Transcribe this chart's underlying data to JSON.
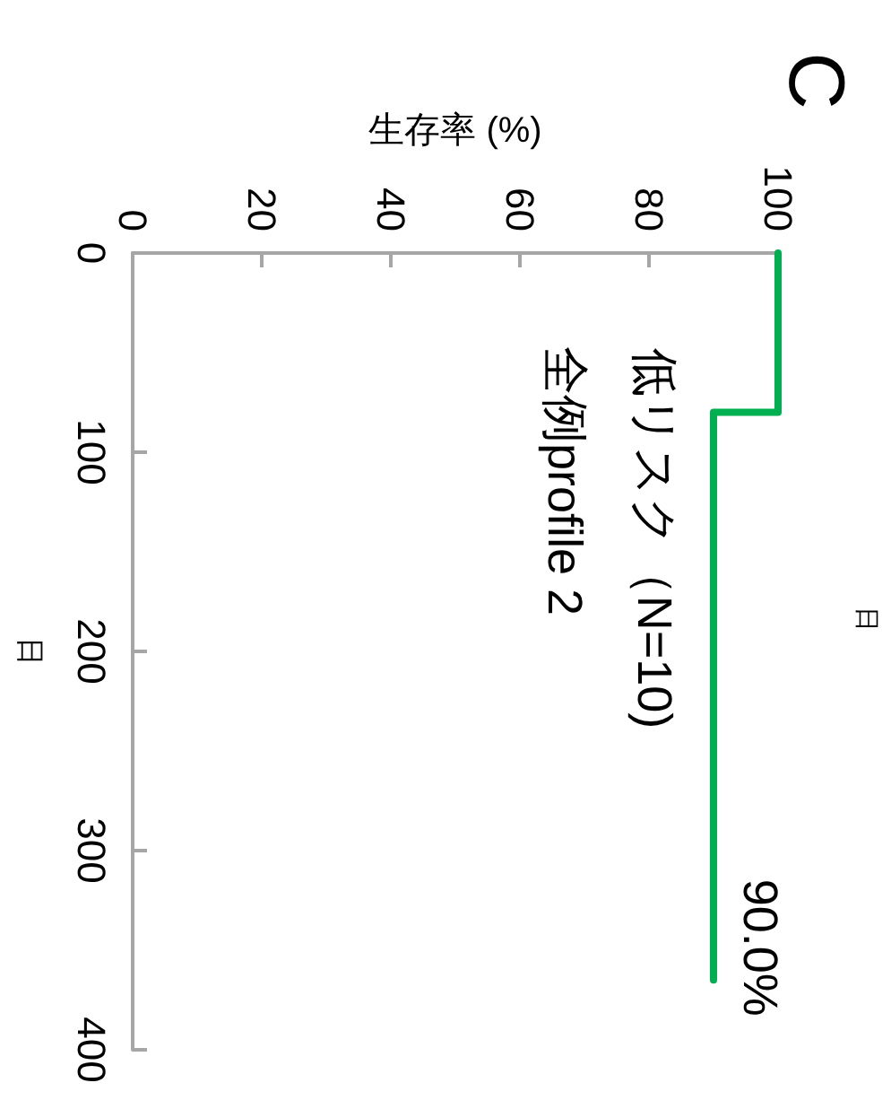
{
  "chart_data": {
    "type": "step",
    "orientation": "horizontal",
    "title": "日",
    "xlabel": "生存率 (%)",
    "ylabel": "日",
    "x": [
      0,
      80,
      365
    ],
    "series": [
      {
        "color": "#00b050",
        "values": [
          100,
          90,
          90
        ]
      }
    ],
    "xlim": [
      0,
      100
    ],
    "xticks": [
      0,
      20,
      40,
      60,
      80,
      100
    ],
    "ylim": [
      400,
      0
    ],
    "yticks": [
      0,
      100,
      200,
      300,
      400
    ],
    "grid": false,
    "marker": "none",
    "line_style": "solid",
    "annotations": [
      "C",
      "低リスク（N=10)",
      "全例profile 2",
      {
        "text": "90.0%",
        "x": 90,
        "y": 365
      }
    ]
  }
}
